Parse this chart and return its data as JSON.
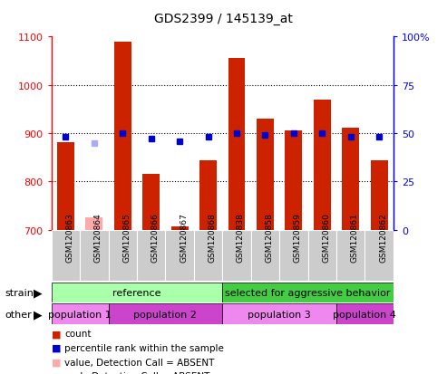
{
  "title": "GDS2399 / 145139_at",
  "samples": [
    "GSM120863",
    "GSM120864",
    "GSM120865",
    "GSM120866",
    "GSM120867",
    "GSM120868",
    "GSM120838",
    "GSM120858",
    "GSM120859",
    "GSM120860",
    "GSM120861",
    "GSM120862"
  ],
  "counts": [
    882,
    null,
    1090,
    815,
    706,
    843,
    1055,
    930,
    905,
    970,
    912,
    843
  ],
  "absent_counts": [
    null,
    726,
    null,
    null,
    null,
    null,
    null,
    null,
    null,
    null,
    null,
    null
  ],
  "percentile_ranks": [
    48,
    null,
    50,
    47,
    46,
    48,
    50,
    49,
    50,
    50,
    48,
    48
  ],
  "absent_ranks": [
    null,
    45,
    null,
    null,
    null,
    null,
    null,
    null,
    null,
    null,
    null,
    null
  ],
  "ylim_left": [
    700,
    1100
  ],
  "ylim_right": [
    0,
    100
  ],
  "yticks_left": [
    700,
    800,
    900,
    1000,
    1100
  ],
  "yticks_right": [
    0,
    25,
    50,
    75,
    100
  ],
  "bar_color": "#cc2200",
  "absent_bar_color": "#ffaaaa",
  "rank_color": "#0000cc",
  "absent_rank_color": "#aaaaff",
  "strain_groups": [
    {
      "label": "reference",
      "start": 0,
      "end": 6,
      "color": "#aaffaa"
    },
    {
      "label": "selected for aggressive behavior",
      "start": 6,
      "end": 12,
      "color": "#44cc44"
    }
  ],
  "other_groups": [
    {
      "label": "population 1",
      "start": 0,
      "end": 2,
      "color": "#ee88ee"
    },
    {
      "label": "population 2",
      "start": 2,
      "end": 6,
      "color": "#cc44cc"
    },
    {
      "label": "population 3",
      "start": 6,
      "end": 10,
      "color": "#ee88ee"
    },
    {
      "label": "population 4",
      "start": 10,
      "end": 12,
      "color": "#cc44cc"
    }
  ],
  "plot_bg": "#ffffff",
  "fig_bg": "#ffffff",
  "xtick_bg": "#cccccc",
  "legend_items": [
    {
      "label": "count",
      "color": "#cc2200"
    },
    {
      "label": "percentile rank within the sample",
      "color": "#0000cc"
    },
    {
      "label": "value, Detection Call = ABSENT",
      "color": "#ffaaaa"
    },
    {
      "label": "rank, Detection Call = ABSENT",
      "color": "#aaaaff"
    }
  ]
}
